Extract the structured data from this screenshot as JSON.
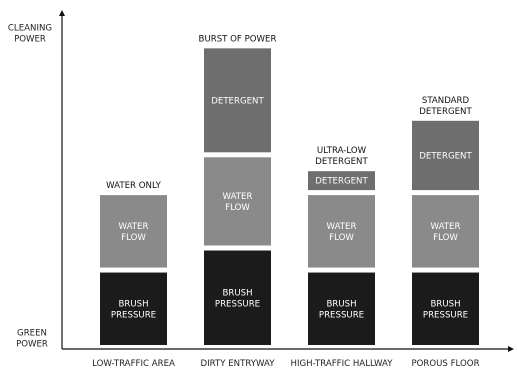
{
  "chart_data": {
    "type": "bar",
    "stacked": true,
    "categories": [
      "LOW-TRAFFIC AREA",
      "DIRTY ENTRYWAY",
      "HIGH-TRAFFIC HALLWAY",
      "POROUS FLOOR"
    ],
    "y_axis": {
      "top_label": [
        "CLEANING",
        "POWER"
      ],
      "bottom_label": [
        "GREEN",
        "POWER"
      ],
      "ticks": false
    },
    "grid": false,
    "legend": "none",
    "columns": [
      {
        "category": "LOW-TRAFFIC AREA",
        "header": [
          "WATER ONLY"
        ],
        "segments": [
          {
            "label": [
              "BRUSH",
              "PRESSURE"
            ],
            "value": 23,
            "color": "#1b1b1b"
          },
          {
            "label": [
              "WATER",
              "FLOW"
            ],
            "value": 23,
            "color": "#8a8a8a"
          }
        ]
      },
      {
        "category": "DIRTY ENTRYWAY",
        "header": [
          "BURST OF POWER"
        ],
        "segments": [
          {
            "label": [
              "BRUSH",
              "PRESSURE"
            ],
            "value": 30,
            "color": "#1b1b1b"
          },
          {
            "label": [
              "WATER",
              "FLOW"
            ],
            "value": 28,
            "color": "#8a8a8a"
          },
          {
            "label": [
              "DETERGENT"
            ],
            "value": 33,
            "color": "#6e6e6e"
          }
        ]
      },
      {
        "category": "HIGH-TRAFFIC HALLWAY",
        "header": [
          "ULTRA-LOW",
          "DETERGENT"
        ],
        "segments": [
          {
            "label": [
              "BRUSH",
              "PRESSURE"
            ],
            "value": 23,
            "color": "#1b1b1b"
          },
          {
            "label": [
              "WATER",
              "FLOW"
            ],
            "value": 23,
            "color": "#8a8a8a"
          },
          {
            "label": [
              "DETERGENT"
            ],
            "value": 6,
            "color": "#6e6e6e"
          }
        ]
      },
      {
        "category": "POROUS FLOOR",
        "header": [
          "STANDARD",
          "DETERGENT"
        ],
        "segments": [
          {
            "label": [
              "BRUSH",
              "PRESSURE"
            ],
            "value": 23,
            "color": "#1b1b1b"
          },
          {
            "label": [
              "WATER",
              "FLOW"
            ],
            "value": 23,
            "color": "#8a8a8a"
          },
          {
            "label": [
              "DETERGENT"
            ],
            "value": 22,
            "color": "#6e6e6e"
          }
        ]
      }
    ],
    "ylim": [
      0,
      100
    ]
  }
}
